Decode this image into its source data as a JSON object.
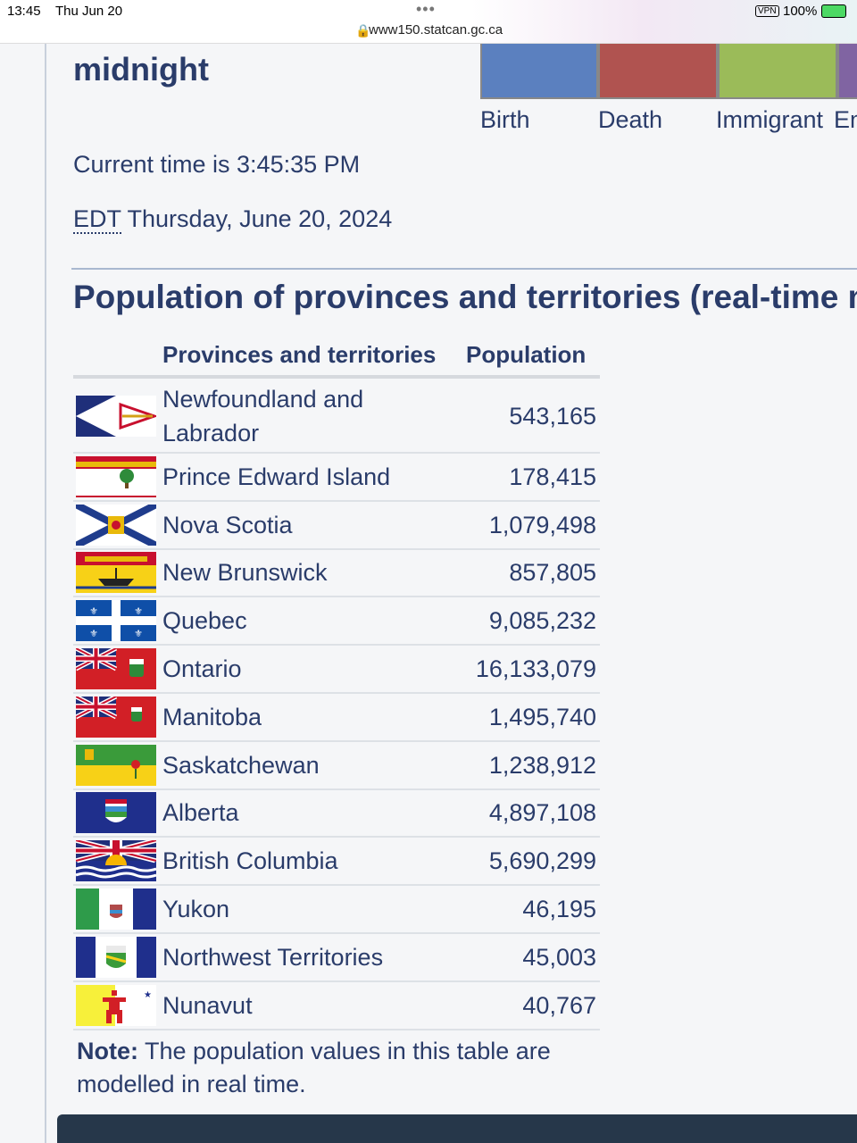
{
  "status_bar": {
    "time": "13:45",
    "date": "Thu Jun 20",
    "url": "www150.statcan.gc.ca",
    "vpn": "VPN",
    "battery": "100%"
  },
  "header": {
    "title": "midnight"
  },
  "legend": [
    "Birth",
    "Death",
    "Immigrant",
    "Emigrant"
  ],
  "clock": {
    "current_time": "Current time is 3:45:35 PM",
    "timezone": "EDT",
    "date": "Thursday, June 20, 2024"
  },
  "section": {
    "title": "Population of provinces and territories (real-time model)"
  },
  "table": {
    "headers": [
      "Provinces and territories",
      "Population"
    ],
    "rows": [
      [
        "Newfoundland and Labrador",
        "543,165"
      ],
      [
        "Prince Edward Island",
        "178,415"
      ],
      [
        "Nova Scotia",
        "1,079,498"
      ],
      [
        "New Brunswick",
        "857,805"
      ],
      [
        "Quebec",
        "9,085,232"
      ],
      [
        "Ontario",
        "16,133,079"
      ],
      [
        "Manitoba",
        "1,495,740"
      ],
      [
        "Saskatchewan",
        "1,238,912"
      ],
      [
        "Alberta",
        "4,897,108"
      ],
      [
        "British Columbia",
        "5,690,299"
      ],
      [
        "Yukon",
        "46,195"
      ],
      [
        "Northwest Territories",
        "45,003"
      ],
      [
        "Nunavut",
        "40,767"
      ]
    ]
  },
  "note": {
    "label": "Note:",
    "text": "The population values in this table are modelled in real time."
  }
}
